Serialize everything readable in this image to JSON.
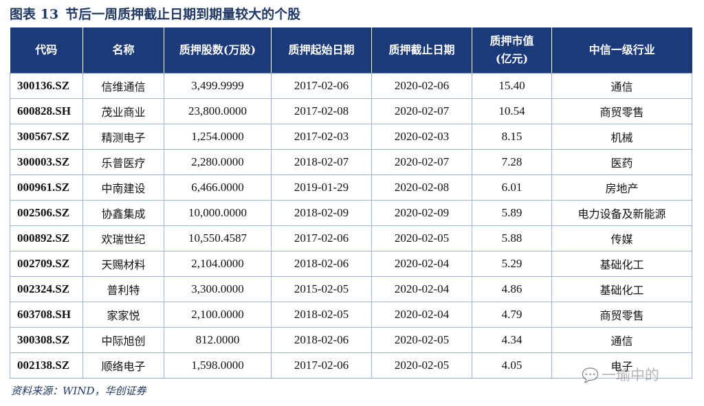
{
  "title": {
    "label": "图表 13",
    "text": "节后一周质押截止日期到期量较大的个股"
  },
  "table": {
    "headers": [
      "代码",
      "名称",
      "质押股数(万股)",
      "质押起始日期",
      "质押截止日期",
      "质押市值",
      "中信一级行业"
    ],
    "header_sub": "(亿元)",
    "rows": [
      [
        "300136.SZ",
        "信维通信",
        "3,499.9999",
        "2017-02-06",
        "2020-02-06",
        "15.40",
        "通信"
      ],
      [
        "600828.SH",
        "茂业商业",
        "23,800.0000",
        "2017-02-08",
        "2020-02-07",
        "10.54",
        "商贸零售"
      ],
      [
        "300567.SZ",
        "精测电子",
        "1,254.0000",
        "2017-02-03",
        "2020-02-03",
        "8.15",
        "机械"
      ],
      [
        "300003.SZ",
        "乐普医疗",
        "2,280.0000",
        "2018-02-07",
        "2020-02-07",
        "7.28",
        "医药"
      ],
      [
        "000961.SZ",
        "中南建设",
        "6,466.0000",
        "2019-01-29",
        "2020-02-08",
        "6.01",
        "房地产"
      ],
      [
        "002506.SZ",
        "协鑫集成",
        "10,000.0000",
        "2018-02-09",
        "2020-02-09",
        "5.89",
        "电力设备及新能源"
      ],
      [
        "000892.SZ",
        "欢瑞世纪",
        "10,550.4587",
        "2017-02-06",
        "2020-02-05",
        "5.88",
        "传媒"
      ],
      [
        "002709.SZ",
        "天赐材料",
        "2,104.0000",
        "2018-02-06",
        "2020-02-04",
        "5.29",
        "基础化工"
      ],
      [
        "002324.SZ",
        "普利特",
        "3,300.0000",
        "2015-02-05",
        "2020-02-04",
        "4.86",
        "基础化工"
      ],
      [
        "603708.SH",
        "家家悦",
        "2,100.0000",
        "2018-02-05",
        "2020-02-04",
        "4.79",
        "商贸零售"
      ],
      [
        "300308.SZ",
        "中际旭创",
        "812.0000",
        "2018-02-06",
        "2020-02-05",
        "4.34",
        "通信"
      ],
      [
        "002138.SZ",
        "顺络电子",
        "1,598.0000",
        "2017-02-06",
        "2020-02-05",
        "4.05",
        "电子"
      ]
    ]
  },
  "source": "资料来源：WIND，华创证券",
  "watermark": "一瑜中的",
  "colors": {
    "header_bg": "#1b3a7a",
    "title": "#1f3864",
    "border": "#9fb2d6"
  },
  "icons": {
    "watermark": "wechat-icon"
  }
}
